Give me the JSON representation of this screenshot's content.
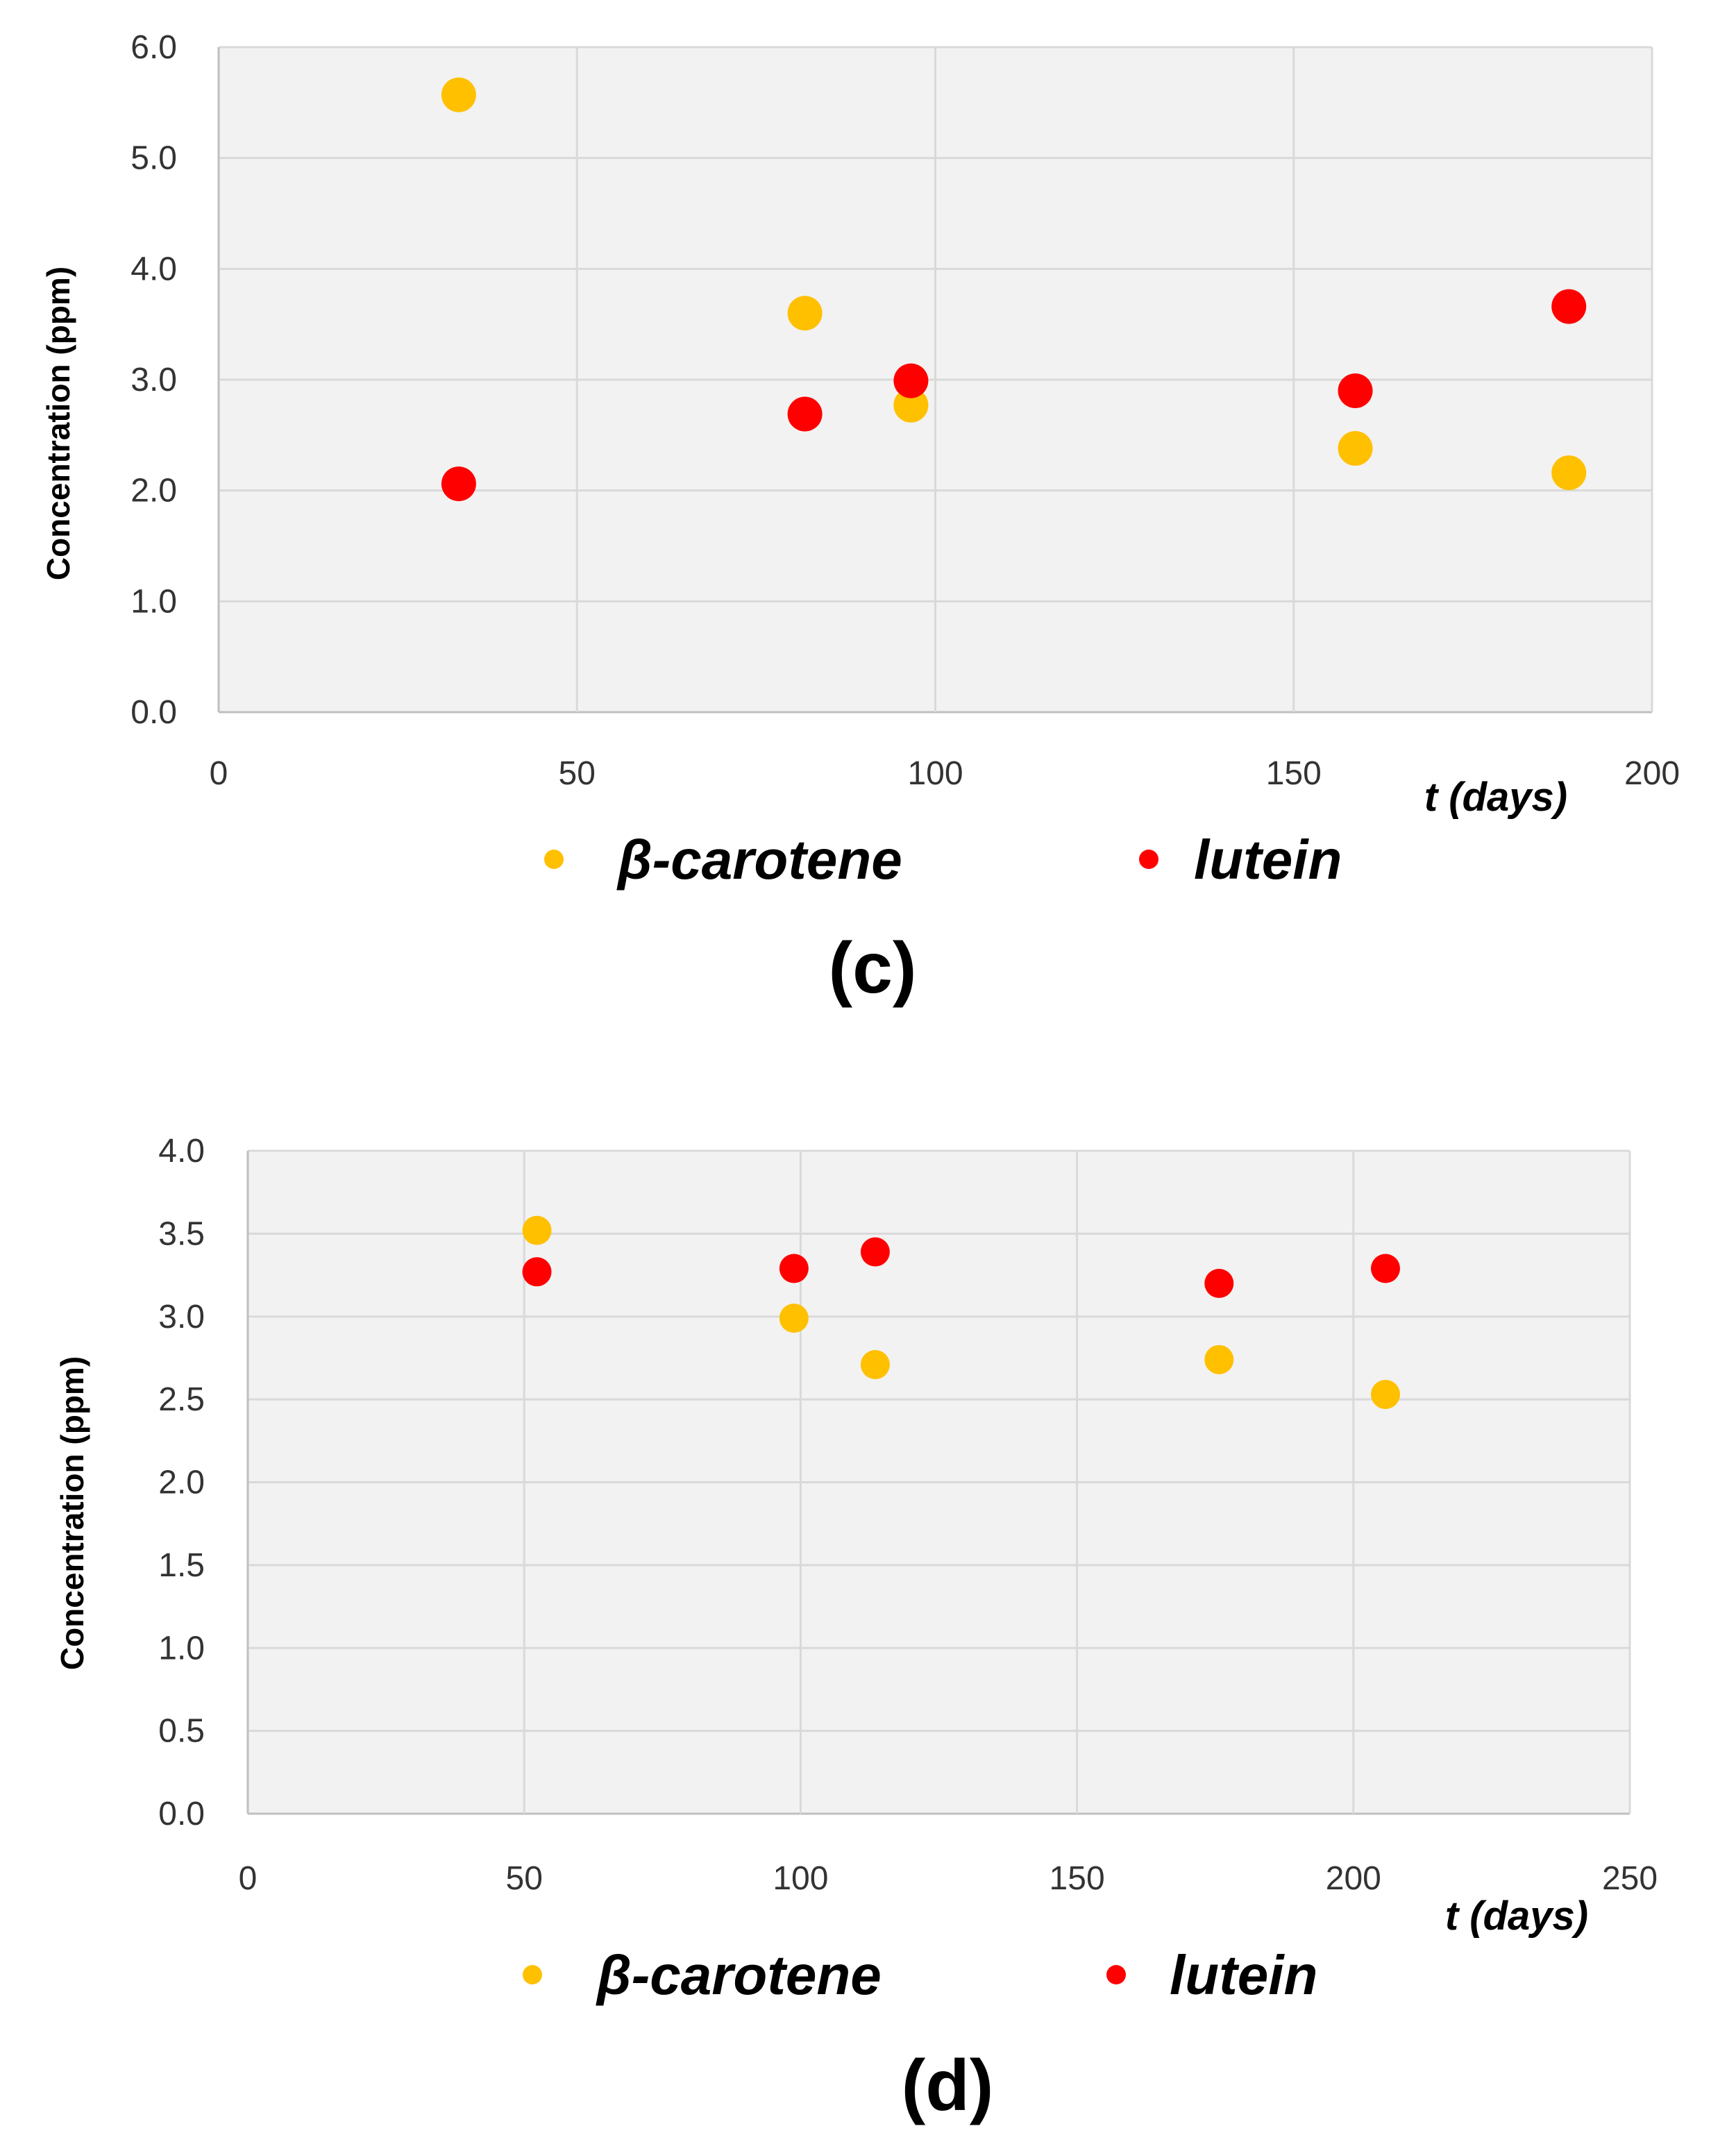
{
  "chart_data": [
    {
      "type": "scatter",
      "panel_label": "(c)",
      "title": "",
      "xlabel": "t (days)",
      "ylabel": "Concentration (ppm)",
      "xlim": [
        0,
        200
      ],
      "ylim": [
        0,
        6
      ],
      "xticks": [
        0,
        50,
        100,
        150,
        200
      ],
      "yticks": [
        0.0,
        1.0,
        2.0,
        3.0,
        4.0,
        5.0,
        6.0
      ],
      "xtick_labels": [
        "0",
        "50",
        "100",
        "150",
        "200"
      ],
      "ytick_labels": [
        "0.0",
        "1.0",
        "2.0",
        "3.0",
        "4.0",
        "5.0",
        "6.0"
      ],
      "grid": true,
      "legend_position": "bottom",
      "series": [
        {
          "name": "β-carotene",
          "color": "#FFC000",
          "points": [
            [
              33.5,
              5.57
            ],
            [
              81.8,
              3.6
            ],
            [
              96.6,
              2.77
            ],
            [
              158.6,
              2.38
            ],
            [
              188.4,
              2.16
            ]
          ]
        },
        {
          "name": "lutein",
          "color": "#FF0000",
          "points": [
            [
              33.5,
              2.06
            ],
            [
              81.8,
              2.69
            ],
            [
              96.6,
              2.99
            ],
            [
              158.6,
              2.9
            ],
            [
              188.4,
              3.66
            ]
          ]
        }
      ]
    },
    {
      "type": "scatter",
      "panel_label": "(d)",
      "title": "",
      "xlabel": "t (days)",
      "ylabel": "Concentration (ppm)",
      "xlim": [
        0,
        250
      ],
      "ylim": [
        0,
        4
      ],
      "xticks": [
        0,
        50,
        100,
        150,
        200,
        250
      ],
      "yticks": [
        0.0,
        0.5,
        1.0,
        1.5,
        2.0,
        2.5,
        3.0,
        3.5,
        4.0
      ],
      "xtick_labels": [
        "0",
        "50",
        "100",
        "150",
        "200",
        "250"
      ],
      "ytick_labels": [
        "0.0",
        "0.5",
        "1.0",
        "1.5",
        "2.0",
        "2.5",
        "3.0",
        "3.5",
        "4.0"
      ],
      "grid": true,
      "legend_position": "bottom",
      "series": [
        {
          "name": "β-carotene",
          "color": "#FFC000",
          "points": [
            [
              52.3,
              3.52
            ],
            [
              98.8,
              2.99
            ],
            [
              113.5,
              2.71
            ],
            [
              175.7,
              2.74
            ],
            [
              205.8,
              2.53
            ]
          ]
        },
        {
          "name": "lutein",
          "color": "#FF0000",
          "points": [
            [
              52.3,
              3.27
            ],
            [
              98.8,
              3.29
            ],
            [
              113.5,
              3.39
            ],
            [
              175.7,
              3.2
            ],
            [
              205.8,
              3.29
            ]
          ]
        }
      ]
    }
  ]
}
